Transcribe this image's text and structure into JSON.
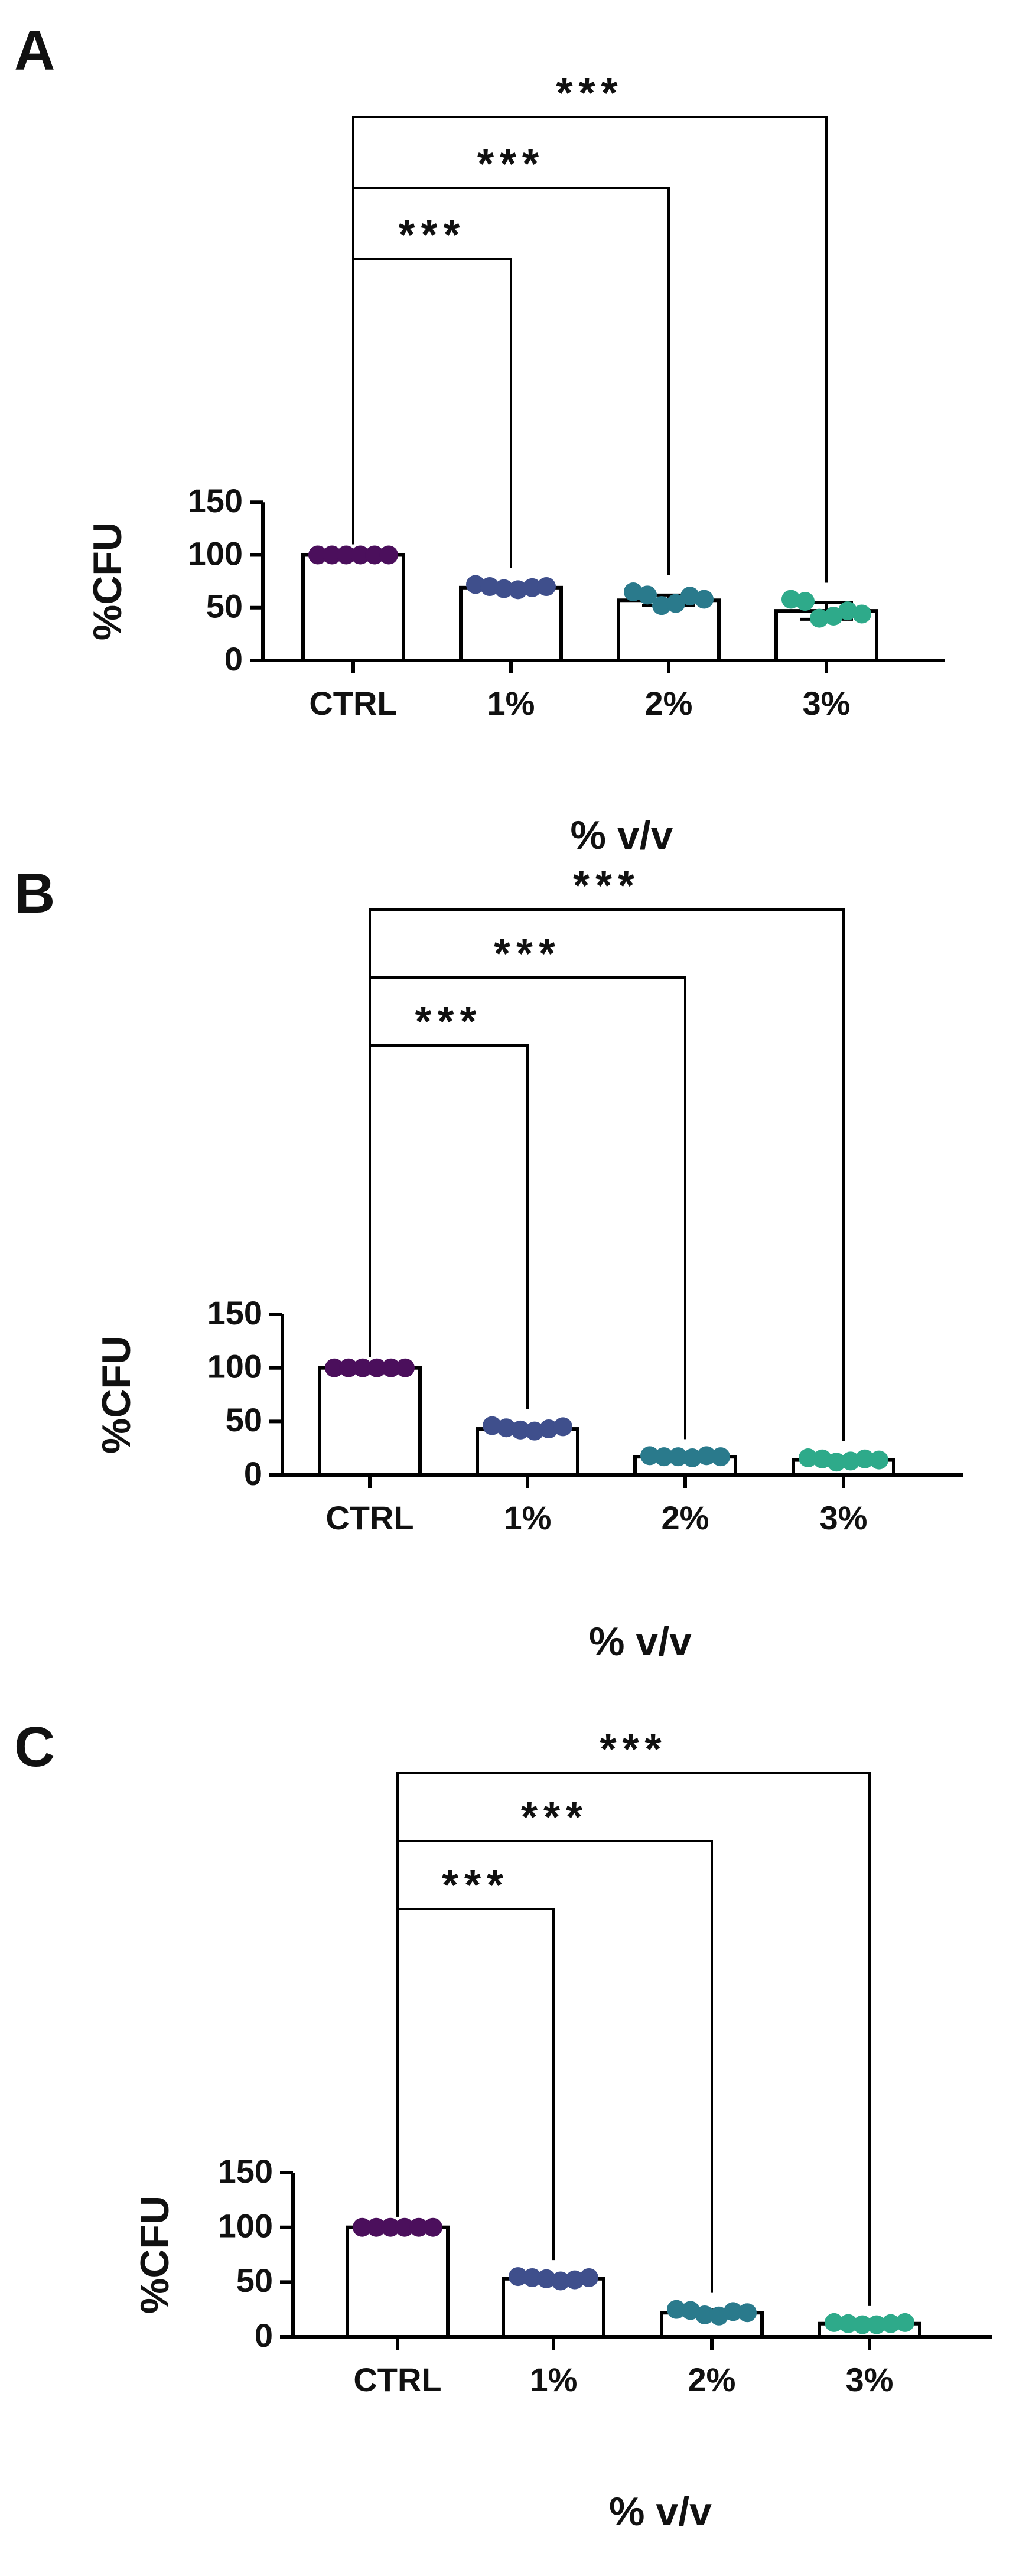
{
  "chart_data": [
    {
      "panel": "A",
      "type": "bar",
      "categories": [
        "CTRL",
        "1%",
        "2%",
        "3%"
      ],
      "values": [
        100,
        69,
        57,
        47
      ],
      "errors": [
        0,
        3,
        5,
        8
      ],
      "points": [
        [
          100,
          100,
          100,
          100,
          100,
          100
        ],
        [
          72,
          70,
          68,
          67,
          69,
          70
        ],
        [
          65,
          62,
          52,
          54,
          61,
          58
        ],
        [
          58,
          56,
          40,
          42,
          47,
          44
        ]
      ],
      "point_colors": [
        "#4b0f5c",
        "#3f4f8c",
        "#2a7a8c",
        "#2eaa8a"
      ],
      "yticks": [
        0,
        50,
        100,
        150
      ],
      "ylim": [
        0,
        150
      ],
      "ylabel": "%CFU",
      "xlabel": "% v/v",
      "significance": [
        {
          "from": "CTRL",
          "to": "1%",
          "label": "***"
        },
        {
          "from": "CTRL",
          "to": "2%",
          "label": "***"
        },
        {
          "from": "CTRL",
          "to": "3%",
          "label": "***"
        }
      ]
    },
    {
      "panel": "B",
      "type": "bar",
      "categories": [
        "CTRL",
        "1%",
        "2%",
        "3%"
      ],
      "values": [
        100,
        43,
        17,
        14
      ],
      "errors": [
        0,
        2.5,
        1,
        1.5
      ],
      "points": [
        [
          100,
          100,
          100,
          100,
          100,
          100
        ],
        [
          46,
          44,
          42,
          41,
          43,
          45
        ],
        [
          18,
          17,
          17,
          16,
          18,
          17
        ],
        [
          16,
          15,
          12,
          13,
          15,
          14
        ]
      ],
      "point_colors": [
        "#4b0f5c",
        "#3f4f8c",
        "#2a7a8c",
        "#2eaa8a"
      ],
      "yticks": [
        0,
        50,
        100,
        150
      ],
      "ylim": [
        0,
        150
      ],
      "ylabel": "%CFU",
      "xlabel": "% v/v",
      "significance": [
        {
          "from": "CTRL",
          "to": "1%",
          "label": "***"
        },
        {
          "from": "CTRL",
          "to": "2%",
          "label": "***"
        },
        {
          "from": "CTRL",
          "to": "3%",
          "label": "***"
        }
      ]
    },
    {
      "panel": "C",
      "type": "bar",
      "categories": [
        "CTRL",
        "1%",
        "2%",
        "3%"
      ],
      "values": [
        100,
        53,
        22,
        12
      ],
      "errors": [
        0,
        2,
        2.5,
        1.5
      ],
      "points": [
        [
          100,
          100,
          100,
          100,
          100,
          100
        ],
        [
          55,
          54,
          53,
          51,
          52,
          54
        ],
        [
          25,
          24,
          20,
          19,
          23,
          22
        ],
        [
          13,
          12,
          11,
          11,
          12,
          13
        ]
      ],
      "point_colors": [
        "#4b0f5c",
        "#3f4f8c",
        "#2a7a8c",
        "#2eaa8a"
      ],
      "yticks": [
        0,
        50,
        100,
        150
      ],
      "ylim": [
        0,
        150
      ],
      "ylabel": "%CFU",
      "xlabel": "% v/v",
      "significance": [
        {
          "from": "CTRL",
          "to": "1%",
          "label": "***"
        },
        {
          "from": "CTRL",
          "to": "2%",
          "label": "***"
        },
        {
          "from": "CTRL",
          "to": "3%",
          "label": "***"
        }
      ]
    }
  ]
}
